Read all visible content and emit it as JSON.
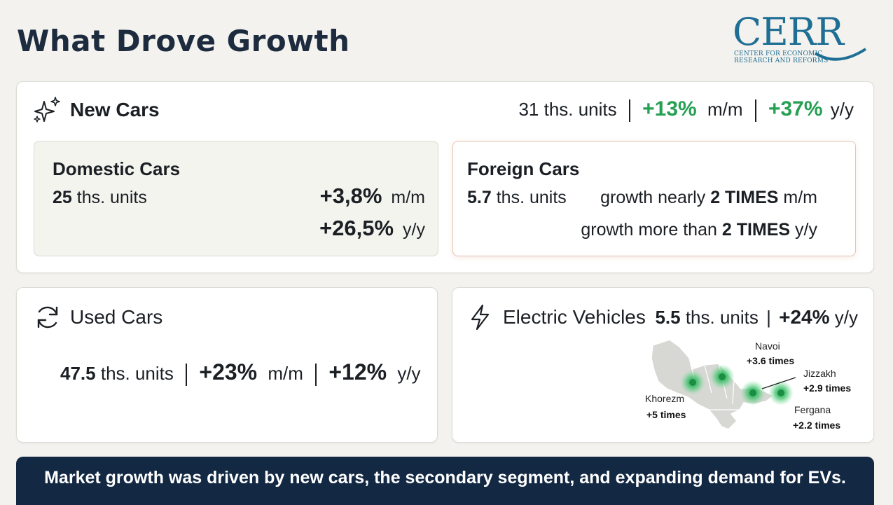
{
  "header": {
    "title": "What Drove Growth",
    "logo": {
      "word": "CERR",
      "line1": "CENTER FOR ECONOMIC",
      "line2": "RESEARCH AND REFORMS"
    }
  },
  "new_cars": {
    "label": "New Cars",
    "units_num": "31",
    "units_word": "ths. units",
    "mm_value": "+13%",
    "mm_label": "m/m",
    "yy_value": "+37%",
    "yy_label": "y/y",
    "icon": "sparkles-icon",
    "domestic": {
      "label": "Domestic Cars",
      "units_num": "25",
      "units_word": "ths. units",
      "mm_value": "+3,8%",
      "mm_label": "m/m",
      "yy_value": "+26,5%",
      "yy_label": "y/y"
    },
    "foreign": {
      "label": "Foreign Cars",
      "units_num": "5.7",
      "units_word": "ths. units",
      "line1_prefix": "growth nearly",
      "line1_bold": "2 TIMES",
      "line1_suffix": "m/m",
      "line2_prefix": "growth more than",
      "line2_bold": "2 TIMES",
      "line2_suffix": "y/y"
    }
  },
  "used_cars": {
    "label": "Used Cars",
    "icon": "refresh-icon",
    "units_num": "47.5",
    "units_word": "ths. units",
    "mm_value": "+23%",
    "mm_label": "m/m",
    "yy_value": "+12%",
    "yy_label": "y/y"
  },
  "ev": {
    "label": "Electric Vehicles",
    "icon": "lightning-icon",
    "units_num": "5.5",
    "units_word": "ths. units",
    "yy_value": "+24%",
    "yy_label": "y/y",
    "regions": [
      {
        "name": "Navoi",
        "value": "+3.6 times"
      },
      {
        "name": "Jizzakh",
        "value": "+2.9 times"
      },
      {
        "name": "Khorezm",
        "value": "+5 times"
      },
      {
        "name": "Fergana",
        "value": "+2.2 times"
      }
    ]
  },
  "colors": {
    "accent_green": "#26a053",
    "banner_bg": "#132843",
    "title": "#1d2b3e",
    "logo": "#1f6f95",
    "foreign_border": "#e8c2b0"
  },
  "banner": {
    "text": "Market growth was driven by new cars, the secondary segment, and expanding demand for EVs."
  }
}
